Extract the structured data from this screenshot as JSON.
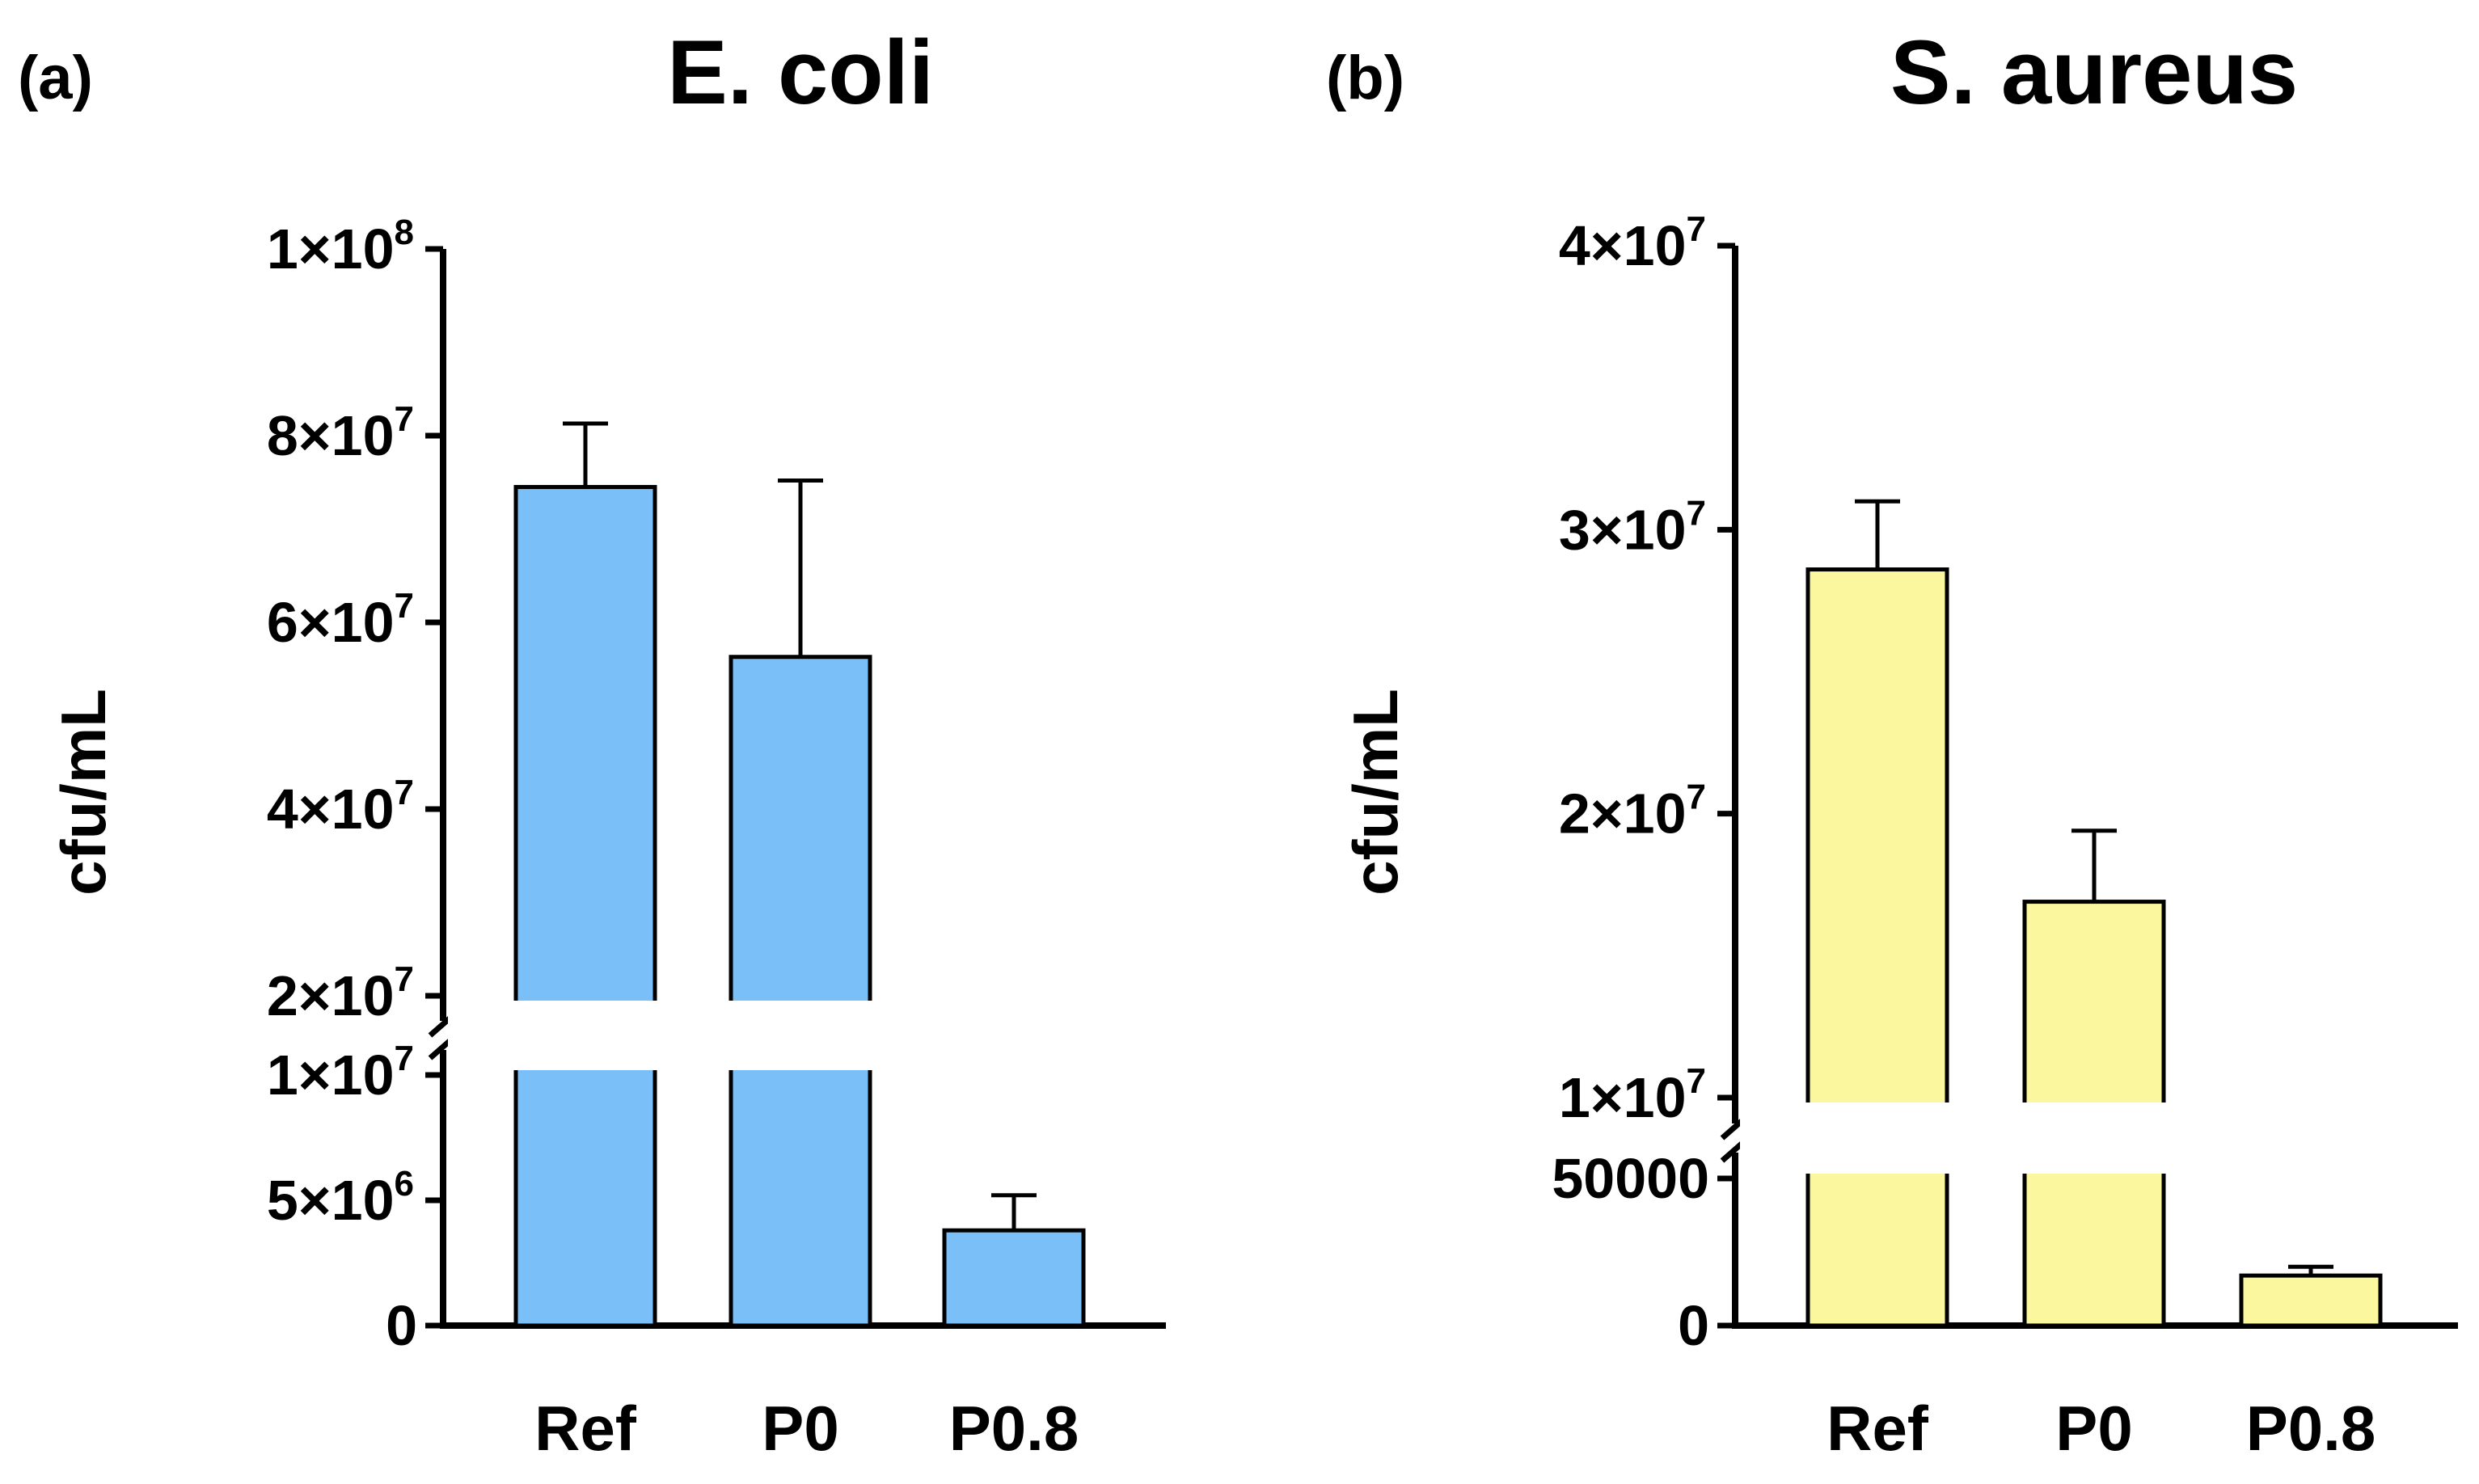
{
  "chart_data": [
    {
      "type": "bar",
      "panel": "(a)",
      "title": "E. coli",
      "xlabel": "",
      "ylabel": "cfu/mL",
      "categories": [
        "Ref",
        "P0",
        "P0.8"
      ],
      "values": [
        74500000,
        56300000,
        3800000
      ],
      "errors": [
        6800000,
        18900000,
        1400000
      ],
      "bar_color": "#7ABFF7",
      "axis_break": {
        "lower_top": 10000000,
        "upper_bottom": 20000000
      },
      "ylim": [
        0,
        100000000
      ],
      "yticks": [
        {
          "value": 0,
          "base": "0",
          "exp": ""
        },
        {
          "value": 5000000,
          "base": "5×10",
          "exp": "6"
        },
        {
          "value": 10000000,
          "base": "1×10",
          "exp": "7"
        },
        {
          "value": 20000000,
          "base": "2×10",
          "exp": "7"
        },
        {
          "value": 40000000,
          "base": "4×10",
          "exp": "7"
        },
        {
          "value": 60000000,
          "base": "6×10",
          "exp": "7"
        },
        {
          "value": 80000000,
          "base": "8×10",
          "exp": "7"
        },
        {
          "value": 100000000,
          "base": "1×10",
          "exp": "8"
        }
      ],
      "grid": false
    },
    {
      "type": "bar",
      "panel": "(b)",
      "title": "S. aureus",
      "xlabel": "",
      "ylabel": "cfu/mL",
      "categories": [
        "Ref",
        "P0",
        "P0.8"
      ],
      "values": [
        28600000,
        16900000,
        17000
      ],
      "errors": [
        2400000,
        2500000,
        3000
      ],
      "bar_color": "#FAF79E",
      "axis_break": {
        "lower_top": 50000,
        "upper_bottom": 10000000
      },
      "ylim": [
        0,
        40000000
      ],
      "yticks": [
        {
          "value": 0,
          "base": "0",
          "exp": ""
        },
        {
          "value": 50000,
          "base": "50000",
          "exp": ""
        },
        {
          "value": 10000000,
          "base": "1×10",
          "exp": "7"
        },
        {
          "value": 20000000,
          "base": "2×10",
          "exp": "7"
        },
        {
          "value": 30000000,
          "base": "3×10",
          "exp": "7"
        },
        {
          "value": 40000000,
          "base": "4×10",
          "exp": "7"
        }
      ],
      "grid": false
    }
  ]
}
